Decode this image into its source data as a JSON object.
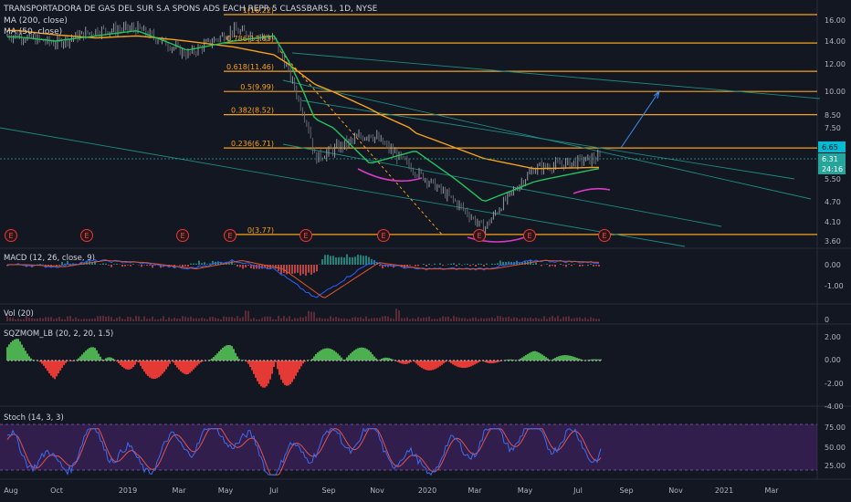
{
  "header": {
    "title": "TRANSPORTADORA DE GAS DEL SUR S.A SPONS ADS EACH REPR 5 CLASSBARS1, 1D, NYSE",
    "ma200": "MA (200, close)",
    "ma50": "MA (50, close)"
  },
  "fib_labels": [
    "1(16.22)",
    "0.786(13.83)",
    "0.618(11.46)",
    "0.5(9.99)",
    "0.382(8.52)",
    "0.236(6.71)",
    "0(3.77)"
  ],
  "price_axis": [
    "16.00",
    "14.00",
    "12.00",
    "10.00",
    "8.50",
    "7.50",
    "5.50",
    "4.70",
    "4.10",
    "3.60"
  ],
  "price_badges": {
    "high": "6.65",
    "last": "6.31",
    "countdown": "24:16"
  },
  "earnings_marker": "E",
  "macd": {
    "label": "MACD (12, 26, close, 9)",
    "ticks": [
      "0.00",
      "-1.00"
    ]
  },
  "volume": {
    "label": "Vol (20)",
    "ticks": [
      "0"
    ]
  },
  "sqzmom": {
    "label": "SQZMOM_LB (20, 2, 20, 1.5)",
    "ticks": [
      "2.00",
      "0.00",
      "-2.00",
      "-4.00"
    ]
  },
  "stoch": {
    "label": "Stoch (14, 3, 3)",
    "ticks": [
      "75.00",
      "50.00",
      "25.00"
    ]
  },
  "time_axis": [
    "Aug",
    "Oct",
    "2019",
    "Mar",
    "May",
    "Jul",
    "Sep",
    "Nov",
    "2020",
    "Mar",
    "May",
    "Jul",
    "Sep",
    "Nov",
    "2021",
    "Mar"
  ],
  "colors": {
    "background": "#131722",
    "fib": "#f7a21b",
    "ma200": "#f7a21b",
    "ma50": "#22c55e",
    "channel": "#1e8a82",
    "projection": "#3d8ef0",
    "curve": "#d63cc3",
    "macd": "#2962ff",
    "signal": "#e1552d",
    "mom_up": "#4caf50",
    "mom_down": "#e53935",
    "stoch_k": "#3d6cf0",
    "stoch_d": "#e05252",
    "stoch_band": "#4a2470"
  },
  "chart_data": [
    {
      "type": "line",
      "title": "TRANSPORTADORA DE GAS DEL SUR S.A SPONS ADS EACH REPR 5 CLASSBARS1, 1D, NYSE",
      "x": [
        "2018-08",
        "2018-10",
        "2018-12",
        "2019-02",
        "2019-04",
        "2019-06",
        "2019-08",
        "2019-10",
        "2019-12",
        "2020-02",
        "2020-04",
        "2020-06",
        "2020-07"
      ],
      "series": [
        {
          "name": "",
          "values": [
            14.5,
            13.8,
            15.0,
            15.2,
            12.8,
            15.0,
            14.2,
            6.3,
            7.3,
            5.8,
            3.9,
            5.9,
            6.31
          ]
        },
        {
          "name": "MA (200, close)",
          "values": [
            15.0,
            14.6,
            14.3,
            14.5,
            14.0,
            13.5,
            12.8,
            10.5,
            8.9,
            7.3,
            6.3,
            5.9,
            5.95
          ]
        },
        {
          "name": "MA (50, close)",
          "values": [
            14.4,
            14.0,
            14.5,
            15.0,
            13.2,
            14.0,
            14.5,
            8.2,
            6.1,
            6.6,
            4.7,
            5.4,
            5.9
          ]
        }
      ],
      "fib_levels": [
        16.22,
        13.83,
        11.46,
        9.99,
        8.52,
        6.71,
        3.77
      ],
      "ylim": [
        3.6,
        16.4
      ],
      "grid": false
    },
    {
      "type": "line",
      "title": "MACD (12, 26, close, 9)",
      "x": [
        "2018-08",
        "2018-10",
        "2018-12",
        "2019-02",
        "2019-04",
        "2019-06",
        "2019-08",
        "2019-10",
        "2019-12",
        "2020-02",
        "2020-04",
        "2020-06",
        "2020-07"
      ],
      "series": [
        {
          "name": "",
          "values": [
            0.0,
            -0.1,
            0.2,
            0.1,
            -0.2,
            0.2,
            -0.2,
            -1.6,
            0.1,
            -0.2,
            -0.2,
            0.2,
            0.1
          ]
        }
      ],
      "ylim": [
        -1.6,
        0.4
      ]
    },
    {
      "type": "bar",
      "title": "SQZMOM_LB (20, 2, 20, 1.5)",
      "x": [
        "2018-08",
        "2018-10",
        "2018-12",
        "2019-02",
        "2019-04",
        "2019-06",
        "2019-08",
        "2019-10",
        "2019-12",
        "2020-02",
        "2020-04",
        "2020-06",
        "2020-07"
      ],
      "values": [
        1.8,
        -1.6,
        1.6,
        -1.7,
        -1.2,
        1.7,
        -4.0,
        1.0,
        1.1,
        -0.9,
        -0.5,
        0.8,
        0.1
      ],
      "ylim": [
        -4.2,
        2.3
      ]
    },
    {
      "type": "line",
      "title": "Stoch (14, 3, 3)",
      "x": [
        "2018-08",
        "2018-10",
        "2018-12",
        "2019-02",
        "2019-04",
        "2019-06",
        "2019-08",
        "2019-10",
        "2019-12",
        "2020-02",
        "2020-04",
        "2020-06",
        "2020-07"
      ],
      "series": [
        {
          "name": "",
          "values": [
            60,
            20,
            80,
            25,
            70,
            85,
            20,
            65,
            80,
            20,
            75,
            85,
            55
          ]
        }
      ],
      "ylim": [
        10,
        90
      ]
    }
  ]
}
